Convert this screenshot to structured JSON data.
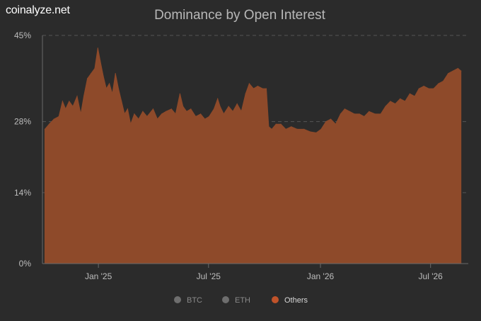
{
  "brand": "coinalyze.net",
  "colors": {
    "background": "#2b2b2b",
    "others": "#8e4a2a",
    "others_legend": "#c0532a",
    "legend_inactive": "#6e6e6e",
    "grid": "#555555",
    "text": "#bdbdbd"
  },
  "chart_data": {
    "type": "area",
    "title": "Dominance by Open Interest",
    "xlabel": "",
    "ylabel": "",
    "ylim": [
      0,
      45
    ],
    "y_ticks": [
      {
        "value": 0,
        "label": "0%"
      },
      {
        "value": 14,
        "label": "14%"
      },
      {
        "value": 28,
        "label": "28%"
      },
      {
        "value": 45,
        "label": "45%"
      }
    ],
    "x_range": [
      "2024-10-01",
      "2026-09-01"
    ],
    "x_ticks": [
      {
        "date": "2025-01-01",
        "label": "Jan '25"
      },
      {
        "date": "2025-07-01",
        "label": "Jul '25"
      },
      {
        "date": "2026-01-01",
        "label": "Jan '26"
      },
      {
        "date": "2026-07-01",
        "label": "Jul '26"
      }
    ],
    "grid": true,
    "legend_position": "bottom",
    "legend": [
      {
        "name": "BTC",
        "active": false
      },
      {
        "name": "ETH",
        "active": false
      },
      {
        "name": "Others",
        "active": true
      }
    ],
    "series": [
      {
        "name": "Others",
        "points": [
          [
            "2024-10-05",
            26.5
          ],
          [
            "2024-10-12",
            27.5
          ],
          [
            "2024-10-20",
            28.5
          ],
          [
            "2024-10-28",
            29.0
          ],
          [
            "2024-11-03",
            32.0
          ],
          [
            "2024-11-08",
            30.5
          ],
          [
            "2024-11-14",
            32.0
          ],
          [
            "2024-11-20",
            31.0
          ],
          [
            "2024-11-27",
            33.0
          ],
          [
            "2024-12-03",
            29.5
          ],
          [
            "2024-12-08",
            33.0
          ],
          [
            "2024-12-14",
            36.5
          ],
          [
            "2024-12-20",
            37.5
          ],
          [
            "2024-12-26",
            38.5
          ],
          [
            "2024-12-31",
            42.5
          ],
          [
            "2025-01-04",
            40.0
          ],
          [
            "2025-01-09",
            37.0
          ],
          [
            "2025-01-14",
            34.5
          ],
          [
            "2025-01-19",
            35.5
          ],
          [
            "2025-01-24",
            33.5
          ],
          [
            "2025-01-29",
            37.5
          ],
          [
            "2025-02-03",
            34.5
          ],
          [
            "2025-02-08",
            32.0
          ],
          [
            "2025-02-13",
            29.5
          ],
          [
            "2025-02-18",
            30.5
          ],
          [
            "2025-02-23",
            27.5
          ],
          [
            "2025-03-01",
            29.5
          ],
          [
            "2025-03-08",
            28.5
          ],
          [
            "2025-03-15",
            30.0
          ],
          [
            "2025-03-22",
            29.0
          ],
          [
            "2025-04-01",
            30.5
          ],
          [
            "2025-04-08",
            28.5
          ],
          [
            "2025-04-15",
            29.5
          ],
          [
            "2025-04-22",
            30.0
          ],
          [
            "2025-05-01",
            30.5
          ],
          [
            "2025-05-08",
            29.5
          ],
          [
            "2025-05-15",
            33.5
          ],
          [
            "2025-05-20",
            31.0
          ],
          [
            "2025-05-26",
            30.0
          ],
          [
            "2025-06-02",
            30.5
          ],
          [
            "2025-06-10",
            29.0
          ],
          [
            "2025-06-18",
            29.5
          ],
          [
            "2025-06-25",
            28.5
          ],
          [
            "2025-07-02",
            29.0
          ],
          [
            "2025-07-10",
            30.5
          ],
          [
            "2025-07-16",
            32.5
          ],
          [
            "2025-07-20",
            31.0
          ],
          [
            "2025-07-26",
            29.5
          ],
          [
            "2025-08-03",
            31.0
          ],
          [
            "2025-08-10",
            30.0
          ],
          [
            "2025-08-17",
            31.5
          ],
          [
            "2025-08-24",
            30.0
          ],
          [
            "2025-08-31",
            33.5
          ],
          [
            "2025-09-06",
            35.5
          ],
          [
            "2025-09-13",
            34.5
          ],
          [
            "2025-09-20",
            35.0
          ],
          [
            "2025-09-28",
            34.5
          ],
          [
            "2025-10-04",
            34.5
          ],
          [
            "2025-10-08",
            27.0
          ],
          [
            "2025-10-13",
            26.5
          ],
          [
            "2025-10-20",
            27.5
          ],
          [
            "2025-10-28",
            27.5
          ],
          [
            "2025-11-05",
            26.5
          ],
          [
            "2025-11-14",
            27.0
          ],
          [
            "2025-11-24",
            26.5
          ],
          [
            "2025-12-05",
            26.5
          ],
          [
            "2025-12-15",
            26.0
          ],
          [
            "2025-12-25",
            25.8
          ],
          [
            "2026-01-02",
            26.5
          ],
          [
            "2026-01-10",
            28.0
          ],
          [
            "2026-01-18",
            28.5
          ],
          [
            "2026-01-26",
            27.5
          ],
          [
            "2026-02-03",
            29.5
          ],
          [
            "2026-02-10",
            30.5
          ],
          [
            "2026-02-18",
            30.0
          ],
          [
            "2026-02-26",
            29.5
          ],
          [
            "2026-03-06",
            29.5
          ],
          [
            "2026-03-14",
            29.0
          ],
          [
            "2026-03-22",
            30.0
          ],
          [
            "2026-04-01",
            29.5
          ],
          [
            "2026-04-10",
            29.5
          ],
          [
            "2026-04-18",
            31.0
          ],
          [
            "2026-04-26",
            32.0
          ],
          [
            "2026-05-04",
            31.5
          ],
          [
            "2026-05-12",
            32.5
          ],
          [
            "2026-05-20",
            32.0
          ],
          [
            "2026-05-28",
            33.5
          ],
          [
            "2026-06-05",
            33.0
          ],
          [
            "2026-06-12",
            34.5
          ],
          [
            "2026-06-20",
            35.0
          ],
          [
            "2026-06-28",
            34.5
          ],
          [
            "2026-07-06",
            34.5
          ],
          [
            "2026-07-14",
            35.5
          ],
          [
            "2026-07-22",
            36.0
          ],
          [
            "2026-07-30",
            37.5
          ],
          [
            "2026-08-07",
            38.0
          ],
          [
            "2026-08-15",
            38.5
          ],
          [
            "2026-08-20",
            38.0
          ]
        ]
      }
    ]
  }
}
